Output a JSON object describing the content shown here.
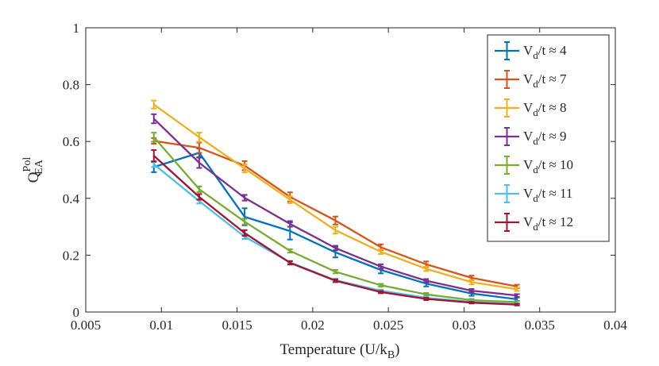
{
  "chart_data": {
    "type": "line",
    "title": "",
    "xlabel": "Temperature (U/k",
    "xlabel_sub": "B",
    "xlabel_close": ")",
    "ylabel": "Q",
    "ylabel_sup": "Pol",
    "ylabel_sub": "EA",
    "xlim": [
      0.005,
      0.04
    ],
    "ylim": [
      0,
      1
    ],
    "xticks": [
      0.005,
      0.01,
      0.015,
      0.02,
      0.025,
      0.03,
      0.035,
      0.04
    ],
    "xtick_labels": [
      "0.005",
      "0.01",
      "0.015",
      "0.02",
      "0.025",
      "0.03",
      "0.035",
      "0.04"
    ],
    "yticks": [
      0,
      0.2,
      0.4,
      0.6,
      0.8,
      1
    ],
    "ytick_labels": [
      "0",
      "0.2",
      "0.4",
      "0.6",
      "0.8",
      "1"
    ],
    "grid": false,
    "legend_position": "top-right",
    "x": [
      0.0095,
      0.0125,
      0.0155,
      0.0185,
      0.0215,
      0.0245,
      0.0275,
      0.0305,
      0.0335
    ],
    "series": [
      {
        "name": "V_d/t ≈ 4",
        "label_main": "V",
        "label_sub": "d",
        "label_rest": "/t ≈ 4",
        "color": "#0072BD",
        "values": [
          0.51,
          0.56,
          0.335,
          0.285,
          0.21,
          0.148,
          0.1,
          0.065,
          0.045
        ],
        "errors": [
          0.018,
          0.015,
          0.03,
          0.03,
          0.018,
          0.012,
          0.01,
          0.008,
          0.006
        ]
      },
      {
        "name": "V_d/t ≈ 7",
        "label_main": "V",
        "label_sub": "d",
        "label_rest": "/t ≈ 7",
        "color": "#D95319",
        "values": [
          0.602,
          0.578,
          0.515,
          0.405,
          0.322,
          0.228,
          0.168,
          0.12,
          0.09
        ],
        "errors": [
          0.01,
          0.018,
          0.016,
          0.016,
          0.014,
          0.01,
          0.01,
          0.008,
          0.006
        ]
      },
      {
        "name": "V_d/t ≈ 8",
        "label_main": "V",
        "label_sub": "d",
        "label_rest": "/t ≈ 8",
        "color": "#EDB120",
        "values": [
          0.73,
          0.615,
          0.505,
          0.395,
          0.288,
          0.212,
          0.152,
          0.105,
          0.08
        ],
        "errors": [
          0.014,
          0.016,
          0.014,
          0.012,
          0.012,
          0.008,
          0.008,
          0.008,
          0.006
        ]
      },
      {
        "name": "V_d/t ≈ 9",
        "label_main": "V",
        "label_sub": "d",
        "label_rest": "/t ≈ 9",
        "color": "#7E2F8E",
        "values": [
          0.68,
          0.525,
          0.402,
          0.31,
          0.225,
          0.16,
          0.11,
          0.075,
          0.058
        ],
        "errors": [
          0.016,
          0.018,
          0.01,
          0.01,
          0.008,
          0.008,
          0.006,
          0.006,
          0.005
        ]
      },
      {
        "name": "V_d/t ≈ 10",
        "label_main": "V",
        "label_sub": "d",
        "label_rest": "/t ≈ 10",
        "color": "#77AC30",
        "values": [
          0.615,
          0.432,
          0.318,
          0.215,
          0.142,
          0.094,
          0.062,
          0.042,
          0.035
        ],
        "errors": [
          0.016,
          0.01,
          0.01,
          0.006,
          0.006,
          0.005,
          0.005,
          0.004,
          0.004
        ]
      },
      {
        "name": "V_d/t ≈ 11",
        "label_main": "V",
        "label_sub": "d",
        "label_rest": "/t ≈ 11",
        "color": "#4DBEEE",
        "values": [
          0.52,
          0.39,
          0.265,
          0.175,
          0.112,
          0.075,
          0.05,
          0.036,
          0.028
        ],
        "errors": [
          0.01,
          0.008,
          0.008,
          0.005,
          0.005,
          0.004,
          0.004,
          0.003,
          0.003
        ]
      },
      {
        "name": "V_d/t ≈ 12",
        "label_main": "V",
        "label_sub": "d",
        "label_rest": "/t ≈ 12",
        "color": "#A2142F",
        "values": [
          0.55,
          0.405,
          0.278,
          0.173,
          0.11,
          0.07,
          0.046,
          0.033,
          0.026
        ],
        "errors": [
          0.02,
          0.01,
          0.01,
          0.006,
          0.005,
          0.004,
          0.004,
          0.003,
          0.003
        ]
      }
    ]
  }
}
